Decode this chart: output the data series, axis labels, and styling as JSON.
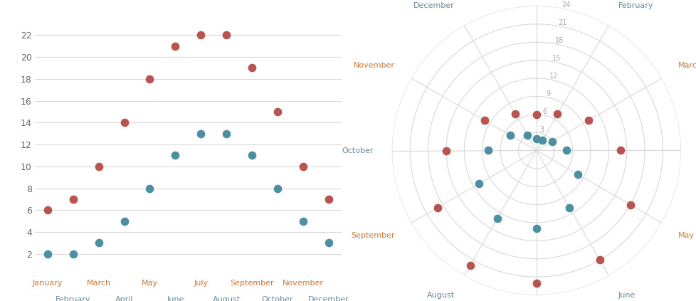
{
  "months": [
    "January",
    "February",
    "March",
    "April",
    "May",
    "June",
    "July",
    "August",
    "September",
    "October",
    "November",
    "December"
  ],
  "red_values": [
    6,
    7,
    10,
    14,
    18,
    21,
    22,
    22,
    19,
    15,
    10,
    7
  ],
  "teal_values": [
    2,
    2,
    3,
    5,
    8,
    11,
    13,
    13,
    11,
    8,
    5,
    3
  ],
  "red_color": "#b85450",
  "teal_color": "#4d8fa0",
  "scatter_bg": "#ffffff",
  "grid_color": "#d8d8d8",
  "label_color_orange": "#c97a3a",
  "label_color_teal": "#6a8a9a",
  "polar_radial_label_color": "#aaaaaa",
  "ylim_polar": [
    0,
    24
  ],
  "yticks_polar": [
    0,
    3,
    6,
    9,
    12,
    15,
    18,
    21,
    24
  ],
  "scatter_yticks": [
    2,
    4,
    6,
    8,
    10,
    12,
    14,
    16,
    18,
    20,
    22
  ],
  "scatter_ylim": [
    1,
    23
  ],
  "dot_size": 55,
  "polar_dot_size": 55,
  "fig_width": 9.79,
  "fig_height": 4.23
}
